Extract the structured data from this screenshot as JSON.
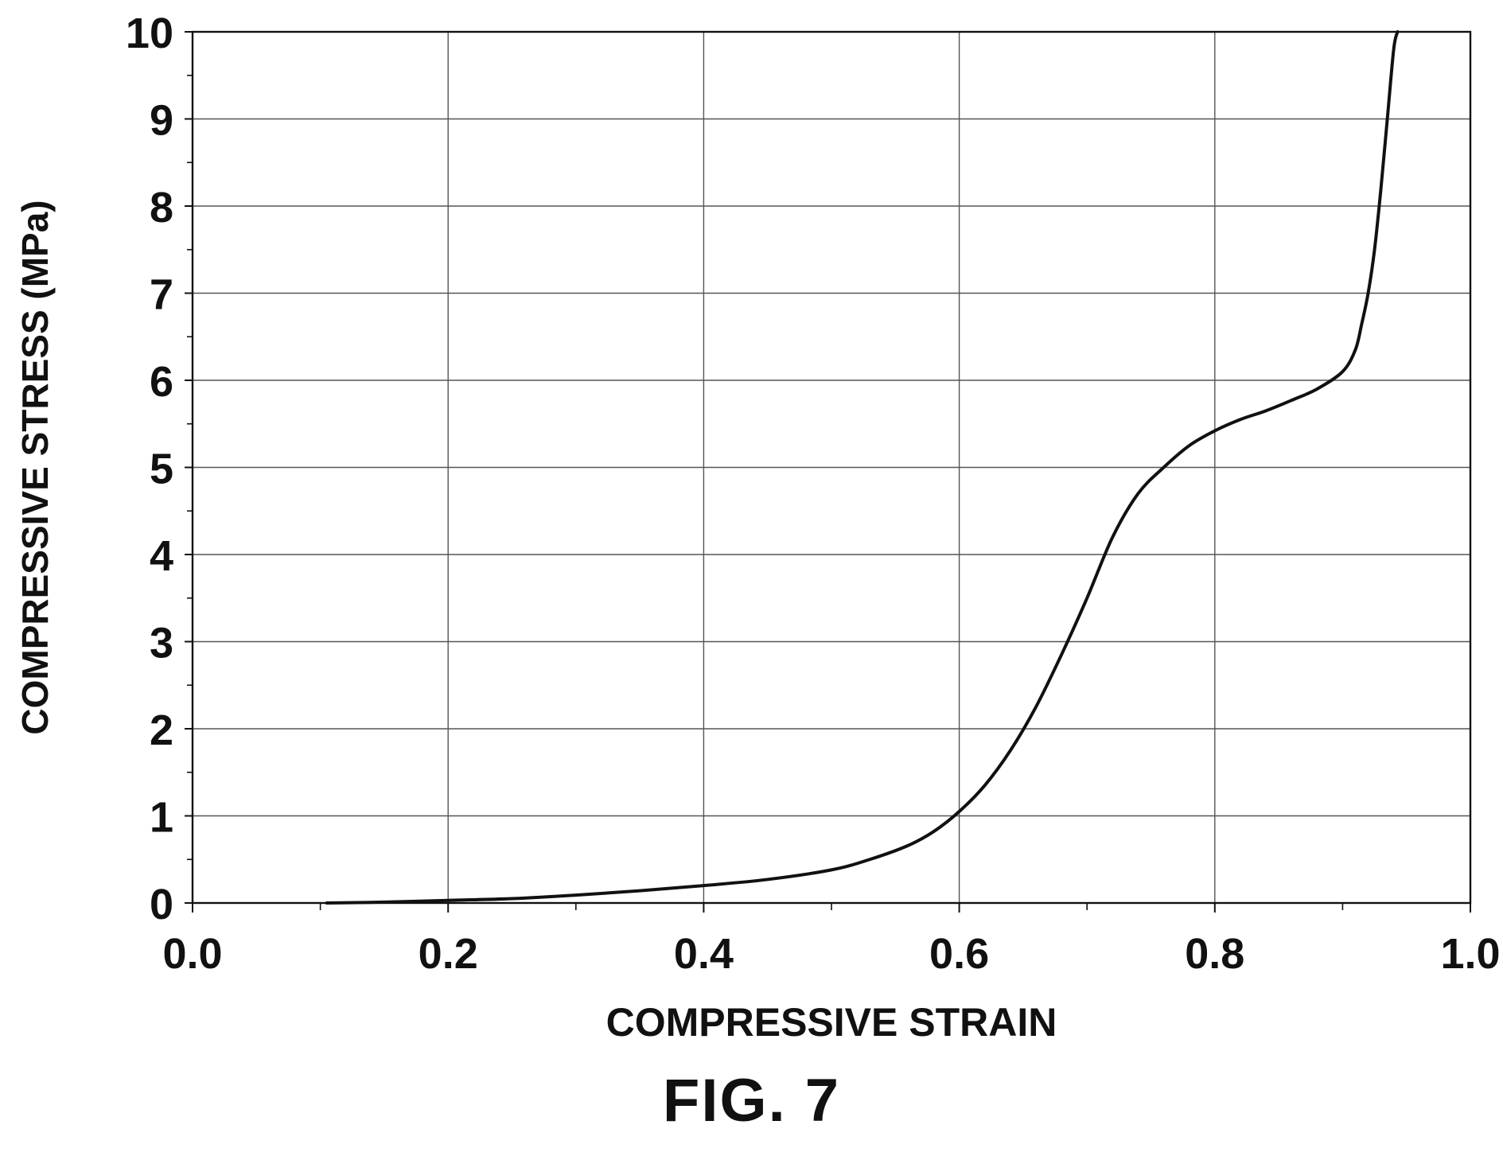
{
  "figure": {
    "caption": "FIG. 7"
  },
  "colors": {
    "line": "#111111",
    "grid": "#555555",
    "axis": "#111111",
    "background": "#ffffff"
  },
  "chart_data": {
    "type": "line",
    "title": "",
    "xlabel": "COMPRESSIVE STRAIN",
    "ylabel": "COMPRESSIVE STRESS (MPa)",
    "xlim": [
      0.0,
      1.0
    ],
    "ylim": [
      0,
      10
    ],
    "xticks": [
      "0.0",
      "0.2",
      "0.4",
      "0.6",
      "0.8",
      "1.0"
    ],
    "yticks": [
      "0",
      "1",
      "2",
      "3",
      "4",
      "5",
      "6",
      "7",
      "8",
      "9",
      "10"
    ],
    "x_minor_step": 0.1,
    "y_minor_step": 0.5,
    "grid": true,
    "legend": "none",
    "series": [
      {
        "x": [
          0.105,
          0.15,
          0.2,
          0.25,
          0.3,
          0.35,
          0.4,
          0.45,
          0.5,
          0.53,
          0.56,
          0.58,
          0.6,
          0.62,
          0.64,
          0.66,
          0.68,
          0.7,
          0.72,
          0.74,
          0.76,
          0.78,
          0.8,
          0.82,
          0.84,
          0.86,
          0.88,
          0.9,
          0.91,
          0.915,
          0.92,
          0.925,
          0.93,
          0.935,
          0.94,
          0.943
        ],
        "y": [
          0.0,
          0.01,
          0.03,
          0.05,
          0.09,
          0.14,
          0.2,
          0.27,
          0.38,
          0.5,
          0.66,
          0.82,
          1.05,
          1.35,
          1.75,
          2.25,
          2.85,
          3.5,
          4.2,
          4.7,
          5.0,
          5.25,
          5.42,
          5.55,
          5.65,
          5.77,
          5.9,
          6.1,
          6.35,
          6.65,
          7.0,
          7.5,
          8.2,
          9.0,
          9.8,
          10.0
        ]
      }
    ]
  }
}
